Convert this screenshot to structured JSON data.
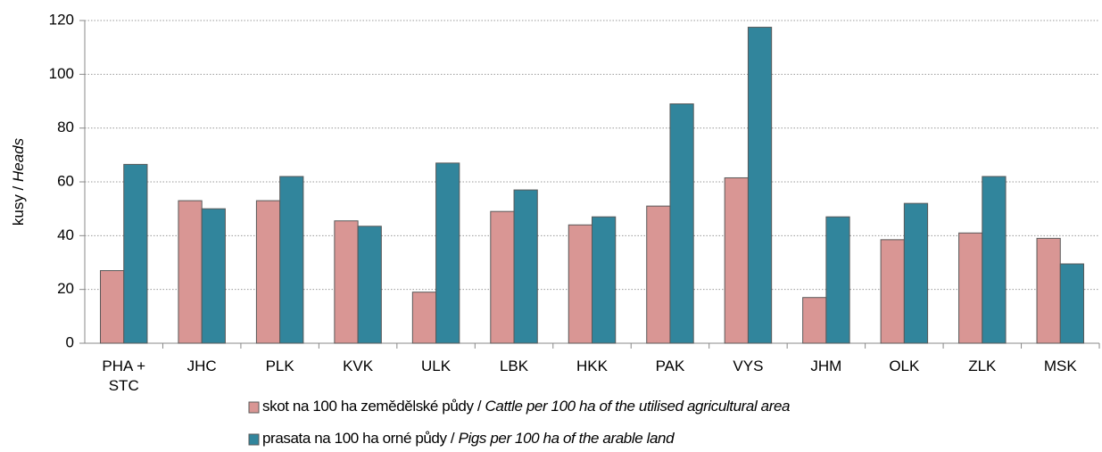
{
  "chart_data": {
    "type": "bar",
    "ylabel": "kusy / Heads",
    "categories": [
      "PHA +\nSTC",
      "JHC",
      "PLK",
      "KVK",
      "ULK",
      "LBK",
      "HKK",
      "PAK",
      "VYS",
      "JHM",
      "OLK",
      "ZLK",
      "MSK"
    ],
    "series": [
      {
        "name": "skot na 100 ha zemědělské půdy / Cattle per 100 ha of the utilised agricultural area",
        "color": "#d99694",
        "values": [
          27,
          53,
          53,
          45.5,
          19,
          49,
          44,
          51,
          61.5,
          17,
          38.5,
          41,
          39
        ]
      },
      {
        "name": "prasata na 100 ha orné půdy / Pigs per 100 ha of the arable land",
        "color": "#31859c",
        "values": [
          66.5,
          50,
          62,
          43.5,
          67,
          57,
          47,
          89,
          117.5,
          47,
          52,
          62,
          29.5
        ]
      }
    ],
    "ylim": [
      0,
      120
    ],
    "yticks": [
      0,
      20,
      40,
      60,
      80,
      100,
      120
    ],
    "grid": true
  }
}
